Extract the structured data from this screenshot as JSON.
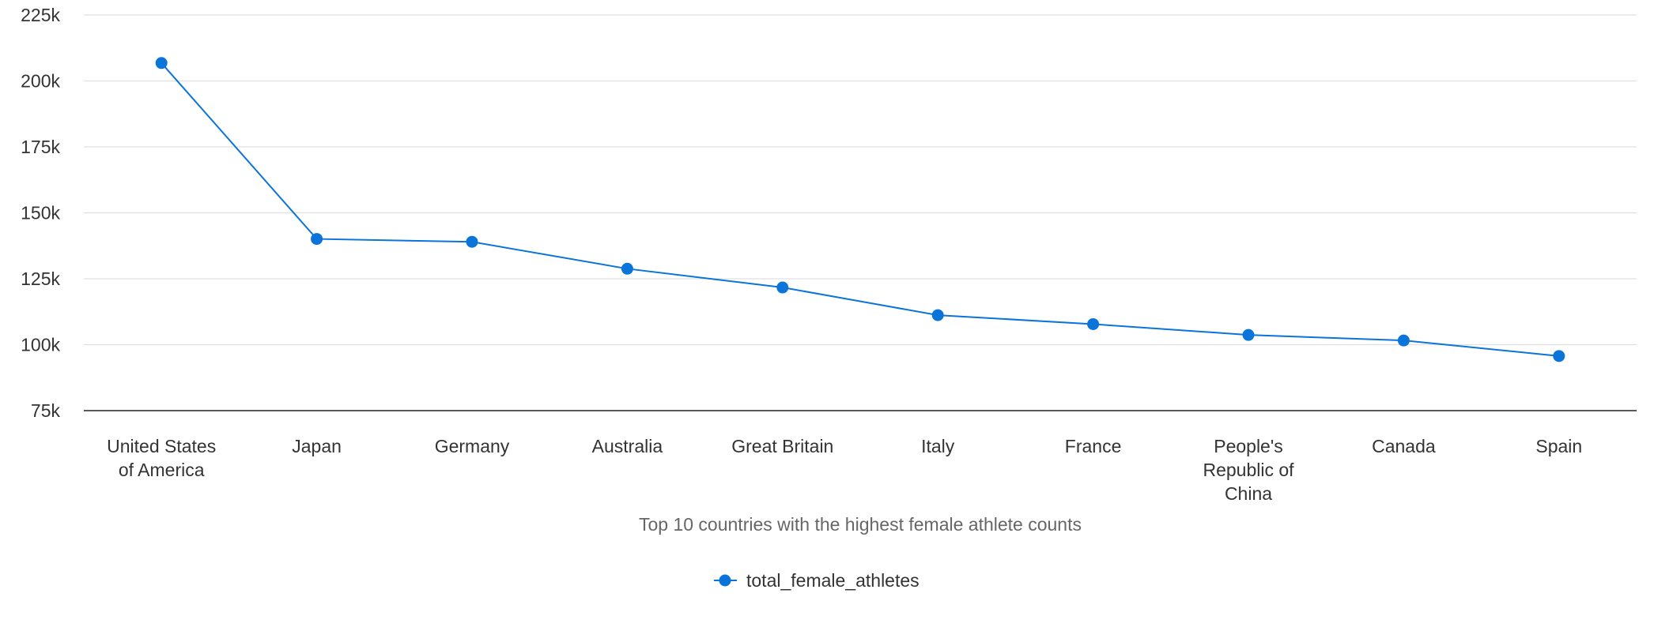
{
  "chart_data": {
    "type": "line",
    "categories": [
      [
        "United States",
        "of America"
      ],
      [
        "Japan"
      ],
      [
        "Germany"
      ],
      [
        "Australia"
      ],
      [
        "Great Britain"
      ],
      [
        "Italy"
      ],
      [
        "France"
      ],
      [
        "People's",
        "Republic of",
        "China"
      ],
      [
        "Canada"
      ],
      [
        "Spain"
      ]
    ],
    "series": [
      {
        "name": "total_female_athletes",
        "color": "#0a74da",
        "values": [
          206800,
          140100,
          139000,
          128800,
          121700,
          111200,
          107800,
          103700,
          101600,
          95700
        ]
      }
    ],
    "xlabel": "Top 10 countries with the highest female athlete counts",
    "ylabel": "",
    "ylim": [
      75000,
      225000
    ],
    "yticks": [
      75000,
      100000,
      125000,
      150000,
      175000,
      200000,
      225000
    ],
    "ytick_labels": [
      "75k",
      "100k",
      "125k",
      "150k",
      "175k",
      "200k",
      "225k"
    ],
    "grid": true,
    "legend": "bottom-center"
  }
}
